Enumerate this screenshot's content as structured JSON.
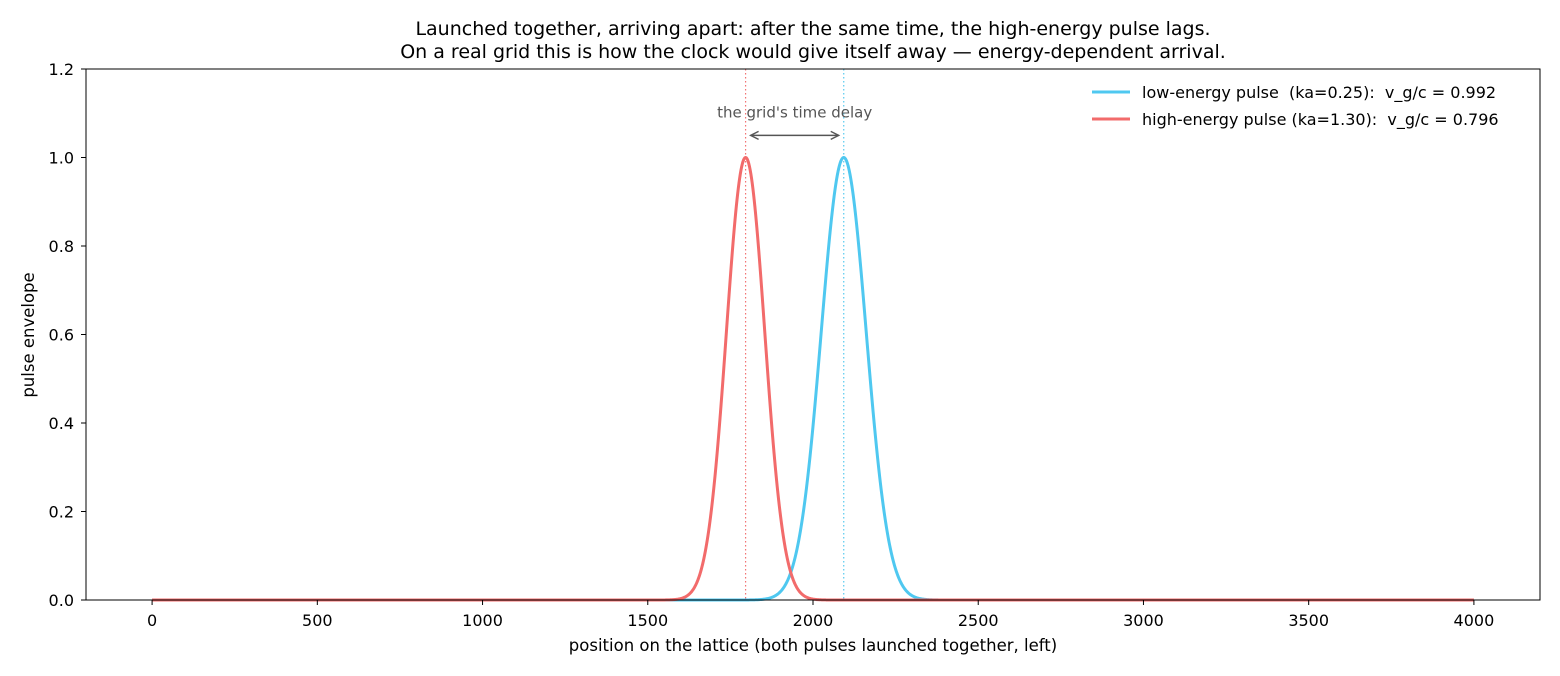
{
  "chart_data": {
    "type": "line",
    "title": [
      "Launched together, arriving apart: after the same time, the high-energy pulse lags.",
      "On a real grid this is how the clock would give itself away — energy-dependent arrival."
    ],
    "xlabel": "position on the lattice  (both pulses launched together, left)",
    "ylabel": "pulse envelope",
    "xlim": [
      -200,
      4200
    ],
    "ylim": [
      0,
      1.2
    ],
    "x_ticks": [
      0,
      500,
      1000,
      1500,
      2000,
      2500,
      3000,
      3500,
      4000
    ],
    "y_ticks": [
      0.0,
      0.2,
      0.4,
      0.6,
      0.8,
      1.0,
      1.2
    ],
    "x_tick_labels": [
      "0",
      "500",
      "1000",
      "1500",
      "2000",
      "2500",
      "3000",
      "3500",
      "4000"
    ],
    "y_tick_labels": [
      "0.0",
      "0.2",
      "0.4",
      "0.6",
      "0.8",
      "1.0",
      "1.2"
    ],
    "grid": false,
    "legend_position": "top-right",
    "x_range": [
      0,
      4000
    ],
    "series": [
      {
        "name": "low-energy pulse  (ka=0.25):  v_g/c = 0.992",
        "color": "#4fc8f0",
        "shape": "gaussian",
        "peak_x": 2093,
        "peak_y": 1.0,
        "width_sigma": 68
      },
      {
        "name": "high-energy pulse (ka=1.30):  v_g/c = 0.796",
        "color": "#f26b6b",
        "shape": "gaussian",
        "peak_x": 1796,
        "peak_y": 1.0,
        "width_sigma": 58
      }
    ],
    "reference_lines": [
      {
        "x": 1796,
        "color": "#f26b6b",
        "style": "dotted"
      },
      {
        "x": 2093,
        "color": "#4fc8f0",
        "style": "dotted"
      }
    ],
    "annotation": {
      "text": "the grid's time delay",
      "arrow_from_x": 1796,
      "arrow_to_x": 2093,
      "arrow_y": 1.05,
      "color": "#555555"
    }
  }
}
